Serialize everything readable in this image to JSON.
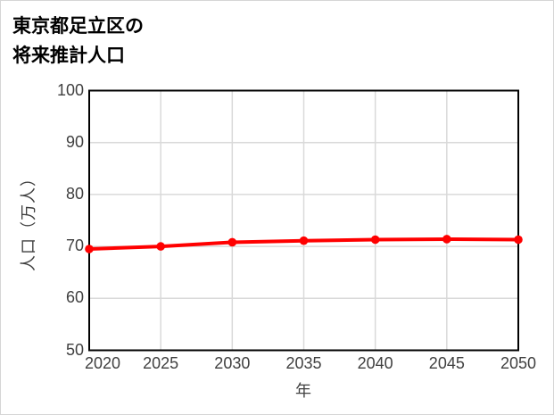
{
  "title": {
    "line1": "東京都足立区の",
    "line2": "将来推計人口"
  },
  "chart_data": {
    "type": "line",
    "title": "東京都足立区の将来推計人口",
    "x": [
      2020,
      2025,
      2030,
      2035,
      2040,
      2045,
      2050
    ],
    "values": [
      69.5,
      70.0,
      70.8,
      71.1,
      71.3,
      71.4,
      71.3
    ],
    "xlabel": "年",
    "ylabel": "人口（万人）",
    "xlim": [
      2020,
      2050
    ],
    "ylim": [
      50,
      100
    ],
    "xticks": [
      2020,
      2025,
      2030,
      2035,
      2040,
      2045,
      2050
    ],
    "yticks": [
      50,
      60,
      70,
      80,
      90,
      100
    ],
    "grid": true,
    "legend": "none",
    "marker": "circle"
  },
  "colors": {
    "line": "#ff0000",
    "gridline": "#d9d9d9",
    "plot_border": "#000000",
    "tick_text": "#404040",
    "title_text": "#000000",
    "frame": "#d6d6d6",
    "background": "#ffffff"
  }
}
